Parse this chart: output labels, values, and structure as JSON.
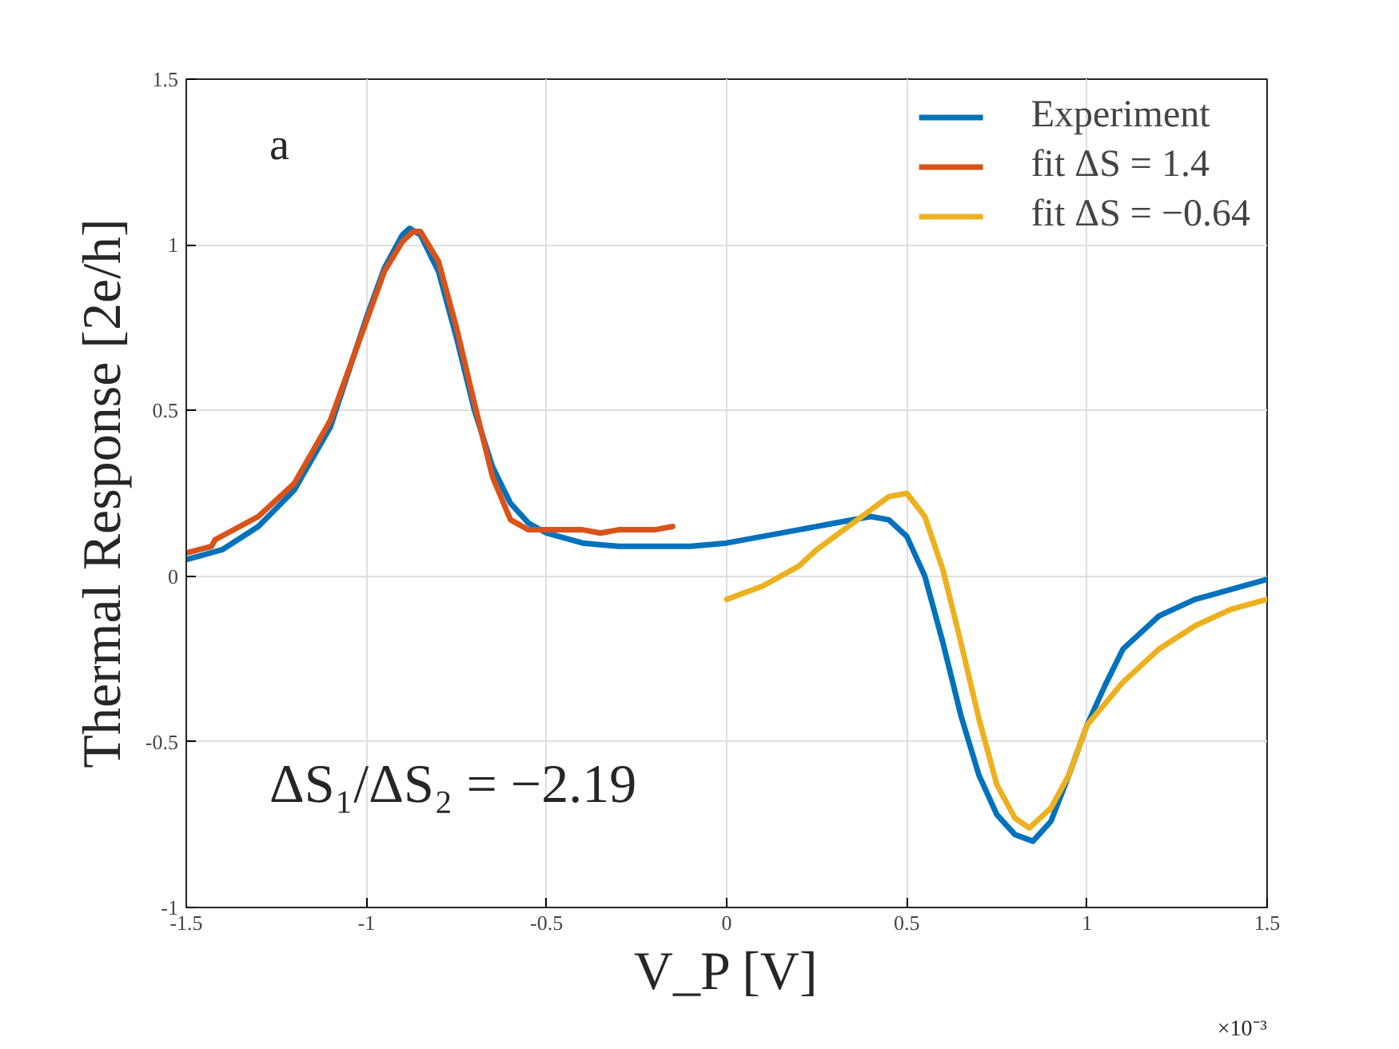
{
  "chart_data": {
    "type": "line",
    "xlabel": "V_P [V]",
    "ylabel": "Thermal Response [2e/h]",
    "xlim": [
      -1.5,
      1.5
    ],
    "ylim": [
      -1,
      1.5
    ],
    "xticks": [
      -1.5,
      -1,
      -0.5,
      0,
      0.5,
      1,
      1.5
    ],
    "yticks": [
      -1,
      -0.5,
      0,
      0.5,
      1,
      1.5
    ],
    "grid": true,
    "legend": "top right",
    "line_style": "solid",
    "marker": "none",
    "annotations": [
      "a",
      "ΔS₁/ΔS₂ = −2.19",
      "×10⁻³"
    ],
    "series": [
      {
        "name": "Experiment",
        "color": "#0072bd",
        "x": [
          -1.5,
          -1.4,
          -1.3,
          -1.2,
          -1.1,
          -1.0,
          -0.95,
          -0.9,
          -0.88,
          -0.85,
          -0.8,
          -0.75,
          -0.7,
          -0.65,
          -0.6,
          -0.55,
          -0.5,
          -0.4,
          -0.3,
          -0.2,
          -0.1,
          0,
          0.1,
          0.2,
          0.3,
          0.4,
          0.45,
          0.5,
          0.55,
          0.6,
          0.65,
          0.7,
          0.75,
          0.8,
          0.85,
          0.9,
          0.95,
          1.0,
          1.05,
          1.1,
          1.2,
          1.3,
          1.4,
          1.5
        ],
        "values": [
          0.05,
          0.08,
          0.15,
          0.26,
          0.45,
          0.78,
          0.93,
          1.03,
          1.05,
          1.03,
          0.92,
          0.72,
          0.5,
          0.33,
          0.22,
          0.16,
          0.13,
          0.1,
          0.09,
          0.09,
          0.09,
          0.1,
          0.12,
          0.14,
          0.16,
          0.18,
          0.17,
          0.12,
          0.0,
          -0.2,
          -0.42,
          -0.6,
          -0.72,
          -0.78,
          -0.8,
          -0.74,
          -0.6,
          -0.45,
          -0.33,
          -0.22,
          -0.12,
          -0.07,
          -0.04,
          -0.01
        ]
      },
      {
        "name": "fit ΔS = 1.4",
        "color": "#d95319",
        "x": [
          -1.5,
          -1.43,
          -1.42,
          -1.3,
          -1.2,
          -1.1,
          -1.0,
          -0.95,
          -0.9,
          -0.87,
          -0.85,
          -0.8,
          -0.75,
          -0.7,
          -0.65,
          -0.6,
          -0.55,
          -0.5,
          -0.45,
          -0.4,
          -0.35,
          -0.3,
          -0.2,
          -0.15
        ],
        "values": [
          0.07,
          0.09,
          0.11,
          0.18,
          0.28,
          0.47,
          0.77,
          0.92,
          1.01,
          1.04,
          1.04,
          0.95,
          0.75,
          0.52,
          0.3,
          0.17,
          0.14,
          0.14,
          0.14,
          0.14,
          0.13,
          0.14,
          0.14,
          0.15
        ]
      },
      {
        "name": "fit ΔS = −0.64",
        "color": "#edb120",
        "x": [
          0,
          0.1,
          0.2,
          0.25,
          0.3,
          0.4,
          0.45,
          0.5,
          0.55,
          0.6,
          0.65,
          0.7,
          0.75,
          0.8,
          0.84,
          0.9,
          0.95,
          1.0,
          1.1,
          1.2,
          1.3,
          1.4,
          1.5
        ],
        "values": [
          -0.07,
          -0.03,
          0.03,
          0.08,
          0.12,
          0.2,
          0.24,
          0.25,
          0.18,
          0.02,
          -0.2,
          -0.43,
          -0.63,
          -0.73,
          -0.76,
          -0.7,
          -0.6,
          -0.45,
          -0.32,
          -0.22,
          -0.15,
          -0.1,
          -0.07
        ]
      }
    ]
  }
}
